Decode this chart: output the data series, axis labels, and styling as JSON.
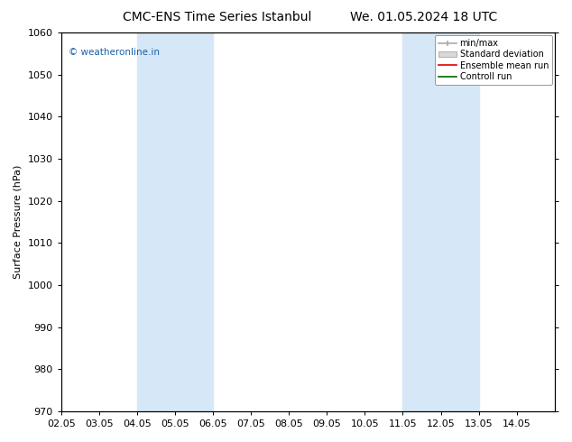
{
  "title_left": "CMC-ENS Time Series Istanbul",
  "title_right": "We. 01.05.2024 18 UTC",
  "ylabel": "Surface Pressure (hPa)",
  "ylim": [
    970,
    1060
  ],
  "yticks": [
    970,
    980,
    990,
    1000,
    1010,
    1020,
    1030,
    1040,
    1050,
    1060
  ],
  "xlim_min": 0,
  "xlim_max": 13,
  "xtick_labels": [
    "02.05",
    "03.05",
    "04.05",
    "05.05",
    "06.05",
    "07.05",
    "08.05",
    "09.05",
    "10.05",
    "11.05",
    "12.05",
    "13.05",
    "14.05"
  ],
  "xtick_positions": [
    0,
    1,
    2,
    3,
    4,
    5,
    6,
    7,
    8,
    9,
    10,
    11,
    12
  ],
  "shaded_bands": [
    {
      "x_start": 2,
      "x_end": 4,
      "color": "#d6e8f7"
    },
    {
      "x_start": 9,
      "x_end": 11,
      "color": "#d6e8f7"
    }
  ],
  "watermark_text": "© weatheronline.in",
  "watermark_color": "#1a5fa8",
  "legend_labels": [
    "min/max",
    "Standard deviation",
    "Ensemble mean run",
    "Controll run"
  ],
  "legend_line_colors": [
    "#aaaaaa",
    "#cccccc",
    "#dd0000",
    "#006600"
  ],
  "background_color": "#ffffff",
  "plot_bg_color": "#f0f0f0",
  "title_fontsize": 10,
  "axis_label_fontsize": 8,
  "tick_fontsize": 8,
  "legend_fontsize": 7
}
